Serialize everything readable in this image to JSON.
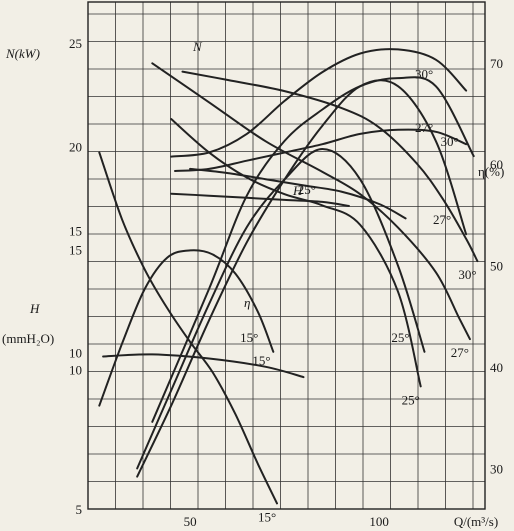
{
  "chart_data": {
    "type": "line",
    "xlabel": "Q/(m³/s)",
    "x_ticks": [
      50,
      100
    ],
    "xlim": [
      23,
      128
    ],
    "axes": {
      "N": {
        "label": "N(kW)",
        "ticks": [
          10,
          15,
          20,
          25
        ],
        "ylim": [
          2.4,
          27
        ]
      },
      "H": {
        "label": "H",
        "unit": "(mmH₂O)",
        "ticks": [
          5,
          10,
          15
        ],
        "ylim": [
          5,
          23.2
        ]
      },
      "eta": {
        "label": "η(%)",
        "ticks": [
          30,
          40,
          50,
          60,
          70
        ],
        "ylim": [
          26,
          76
        ]
      }
    },
    "group_labels": {
      "N": "N",
      "H": "H",
      "eta": "η"
    },
    "grid": true,
    "series": [
      {
        "name": "30°",
        "group": "N",
        "axis": "N",
        "x": [
          45,
          55,
          65,
          75,
          85,
          95,
          105,
          115,
          123
        ],
        "y": [
          19.5,
          19.7,
          20.6,
          22.2,
          23.6,
          24.5,
          24.7,
          24.2,
          22.7
        ]
      },
      {
        "name": "27°",
        "group": "N",
        "axis": "N",
        "x": [
          46,
          55,
          65,
          75,
          85,
          95,
          105,
          115,
          123
        ],
        "y": [
          18.8,
          18.9,
          19.3,
          19.7,
          20.1,
          20.6,
          20.8,
          20.7,
          20.1
        ]
      },
      {
        "name": "",
        "group": "N",
        "axis": "N",
        "x": [
          50,
          60,
          70,
          80,
          90,
          100,
          107
        ],
        "y": [
          18.9,
          18.7,
          18.4,
          18.1,
          17.8,
          17.2,
          16.5
        ]
      },
      {
        "name": "25°",
        "group": "N",
        "axis": "N",
        "x": [
          45,
          55,
          65,
          75,
          85,
          92
        ],
        "y": [
          17.7,
          17.6,
          17.5,
          17.4,
          17.3,
          17.1
        ]
      },
      {
        "name": "15°",
        "group": "N",
        "axis": "N",
        "x": [
          27,
          40,
          55,
          70,
          80
        ],
        "y": [
          9.8,
          9.9,
          9.7,
          9.3,
          8.8
        ]
      },
      {
        "name": "30°",
        "group": "H",
        "axis": "H",
        "x": [
          48,
          60,
          75,
          90,
          100,
          110,
          117,
          123,
          126
        ],
        "y": [
          20.7,
          20.4,
          20.0,
          19.4,
          18.7,
          17.4,
          16.1,
          14.7,
          13.9
        ]
      },
      {
        "name": "27°",
        "group": "H",
        "axis": "H",
        "x": [
          40,
          55,
          70,
          85,
          95,
          105,
          115,
          121,
          124
        ],
        "y": [
          21.0,
          19.6,
          18.2,
          17.1,
          16.3,
          15.1,
          13.5,
          11.9,
          11.1
        ]
      },
      {
        "name": "25°",
        "group": "H",
        "axis": "H",
        "x": [
          45,
          55,
          65,
          75,
          85,
          95,
          105,
          111
        ],
        "y": [
          19.0,
          17.8,
          16.9,
          16.3,
          15.9,
          15.2,
          12.8,
          9.4
        ]
      },
      {
        "name": "15°",
        "group": "H",
        "axis": "H",
        "x": [
          26,
          32,
          38,
          44,
          50,
          56,
          62,
          68,
          73
        ],
        "y": [
          17.8,
          15.4,
          13.6,
          12.2,
          11.0,
          9.9,
          8.4,
          6.6,
          5.2
        ]
      },
      {
        "name": "30°",
        "group": "eta",
        "axis": "eta",
        "x": [
          40,
          55,
          65,
          75,
          85,
          95,
          105,
          115,
          125
        ],
        "y": [
          34.6,
          47.7,
          56.9,
          62.3,
          65.4,
          67.7,
          68.5,
          67.7,
          60.8
        ]
      },
      {
        "name": "27°",
        "group": "eta",
        "axis": "eta",
        "x": [
          36,
          45,
          55,
          65,
          75,
          85,
          95,
          105,
          115,
          123
        ],
        "y": [
          29.2,
          36.2,
          44.6,
          52.3,
          58.5,
          63.8,
          67.7,
          67.7,
          62.3,
          53.1
        ]
      },
      {
        "name": "25°",
        "group": "eta",
        "axis": "eta",
        "x": [
          36,
          45,
          55,
          65,
          75,
          85,
          95,
          105,
          112
        ],
        "y": [
          30.0,
          37.7,
          46.2,
          53.8,
          58.5,
          61.5,
          58.5,
          50.0,
          41.5
        ]
      },
      {
        "name": "15°",
        "group": "eta",
        "axis": "eta",
        "x": [
          26,
          32,
          38,
          44,
          50,
          56,
          62,
          68,
          72
        ],
        "y": [
          36.2,
          42.3,
          47.7,
          50.8,
          51.5,
          51.1,
          49.2,
          45.4,
          41.5
        ]
      }
    ]
  }
}
